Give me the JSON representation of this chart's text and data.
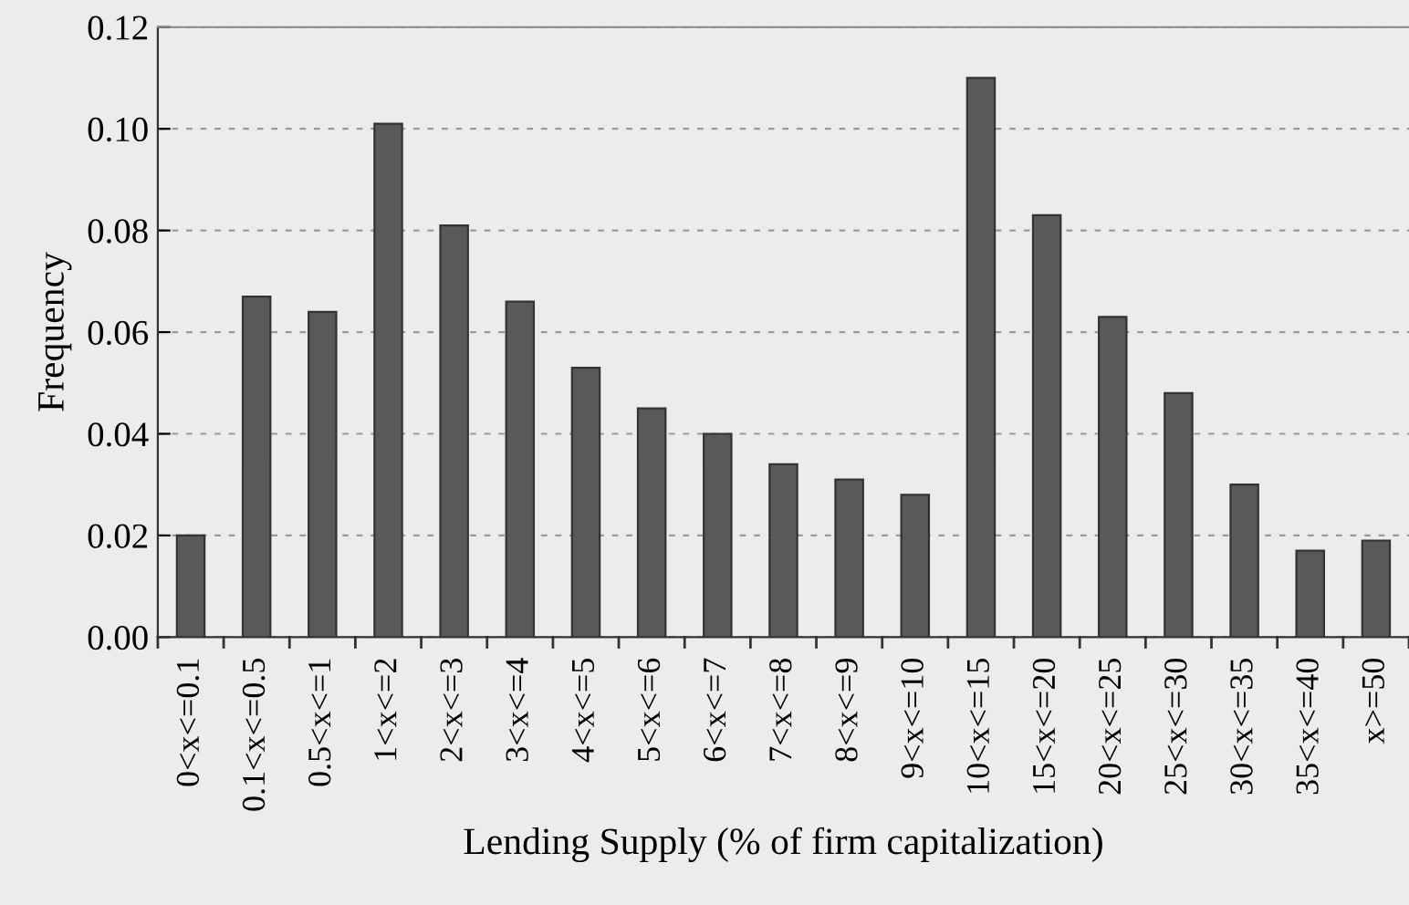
{
  "chart_data": {
    "type": "bar",
    "xlabel": "Lending Supply (% of firm capitalization)",
    "ylabel": "Frequency",
    "categories": [
      "0<x<=0.1",
      "0.1<x<=0.5",
      "0.5<x<=1",
      "1<x<=2",
      "2<x<=3",
      "3<x<=4",
      "4<x<=5",
      "5<x<=6",
      "6<x<=7",
      "7<x<=8",
      "8<x<=9",
      "9<x<=10",
      "10<x<=15",
      "15<x<=20",
      "20<x<=25",
      "25<x<=30",
      "30<x<=35",
      "35<x<=40",
      "x>=50"
    ],
    "values": [
      0.02,
      0.067,
      0.064,
      0.101,
      0.081,
      0.066,
      0.053,
      0.045,
      0.04,
      0.034,
      0.031,
      0.028,
      0.11,
      0.083,
      0.063,
      0.048,
      0.03,
      0.017,
      0.019
    ],
    "color": "#595959",
    "ylim": [
      0,
      0.12
    ],
    "yticks": [
      {
        "value": 0,
        "label": "0.00"
      },
      {
        "value": 0.02,
        "label": "0.02"
      },
      {
        "value": 0.04,
        "label": "0.04"
      },
      {
        "value": 0.06,
        "label": "0.06"
      },
      {
        "value": 0.08,
        "label": "0.08"
      },
      {
        "value": 0.1,
        "label": "0.10"
      },
      {
        "value": 0.12,
        "label": "0.12"
      }
    ],
    "grid": "y"
  }
}
